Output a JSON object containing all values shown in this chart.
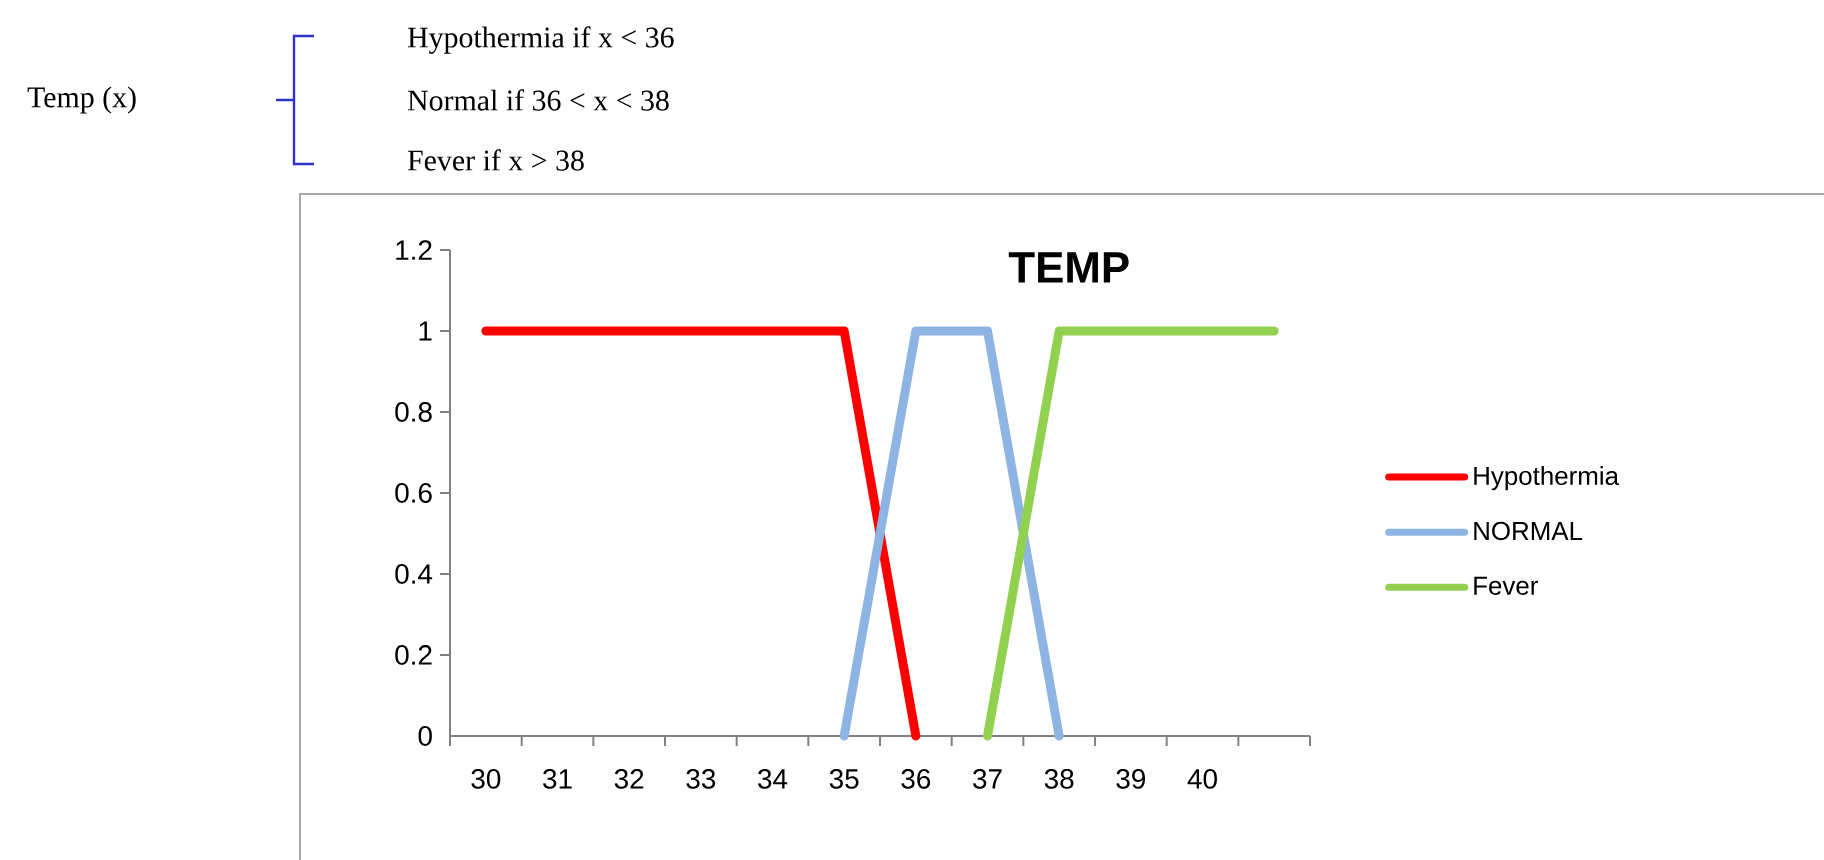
{
  "chart_data": {
    "type": "line",
    "title": "TEMP",
    "annotations": [
      "Temp (x)",
      "Hypothermia    if    x < 36",
      "Normal                 if   36 < x < 38",
      "Fever     if x > 38"
    ],
    "xlim": [
      29.5,
      41.5
    ],
    "xticks": [
      {
        "value": 29.5,
        "label": null
      },
      30,
      {
        "value": 30.5,
        "label": null
      },
      31,
      {
        "value": 31.5,
        "label": null
      },
      32,
      {
        "value": 32.5,
        "label": null
      },
      33,
      {
        "value": 33.5,
        "label": null
      },
      34,
      {
        "value": 34.5,
        "label": null
      },
      35,
      {
        "value": 35.5,
        "label": null
      },
      36,
      {
        "value": 36.5,
        "label": null
      },
      37,
      {
        "value": 37.5,
        "label": null
      },
      38,
      {
        "value": 38.5,
        "label": null
      },
      39,
      {
        "value": 39.5,
        "label": null
      },
      40,
      {
        "value": 40.5,
        "label": null
      },
      {
        "value": 41.5,
        "label": null
      }
    ],
    "ylim": [
      0,
      1.2
    ],
    "yticks": [
      0,
      0.2,
      0.4,
      0.6,
      0.8,
      1,
      1.2
    ],
    "legend": "right",
    "marker": "none",
    "line_style": "solid",
    "series": [
      {
        "name": "Hypothermia",
        "color": "#ff0000",
        "x": [
          30,
          31,
          32,
          33,
          34,
          35,
          36
        ],
        "values": [
          1,
          1,
          1,
          1,
          1,
          1,
          0
        ]
      },
      {
        "name": "NORMAL",
        "color": "#8eb4e3",
        "x": [
          35,
          36,
          37,
          38
        ],
        "values": [
          0,
          1,
          1,
          0
        ]
      },
      {
        "name": "Fever",
        "color": "#92d050",
        "x": [
          37,
          38,
          39,
          40,
          41
        ],
        "values": [
          0,
          1,
          1,
          1,
          1
        ]
      }
    ]
  }
}
